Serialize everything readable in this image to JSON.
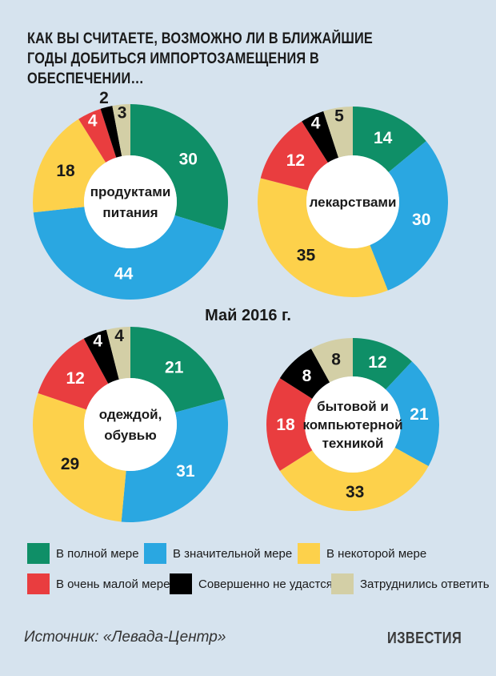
{
  "title": "КАК ВЫ СЧИТАЕТЕ, ВОЗМОЖНО ЛИ В БЛИЖАЙШИЕ ГОДЫ ДОБИТЬСЯ ИМПОРТОЗАМЕЩЕНИЯ В ОБЕСПЕЧЕНИИ…",
  "date": "Май 2016 г.",
  "source": "Источник: «Левада-Центр»",
  "logo": "ИЗВЕСТИЯ",
  "colors": {
    "full": "#0f8f67",
    "significant": "#2aa7e1",
    "some": "#fdd14b",
    "very_little": "#e93d3f",
    "impossible": "#000000",
    "hard_to_say": "#d3cfa6"
  },
  "legend": [
    {
      "label": "В полной мере",
      "color": "#0f8f67"
    },
    {
      "label": "В значительной мере",
      "color": "#2aa7e1"
    },
    {
      "label": "В некоторой мере",
      "color": "#fdd14b"
    },
    {
      "label": "В очень малой мере",
      "color": "#e93d3f"
    },
    {
      "label": "Совершенно не удастся",
      "color": "#000000"
    },
    {
      "label": "Затруднились ответить",
      "color": "#d3cfa6"
    }
  ],
  "chart_data": [
    {
      "type": "pie",
      "center_label": [
        "продуктами",
        "питания"
      ],
      "categories": [
        "В полной мере",
        "В значительной мере",
        "В некоторой мере",
        "В очень малой мере",
        "Совершенно не удастся",
        "Затруднились ответить"
      ],
      "values": [
        30,
        44,
        18,
        4,
        2,
        3
      ]
    },
    {
      "type": "pie",
      "center_label": [
        "лекарствами"
      ],
      "categories": [
        "В полной мере",
        "В значительной мере",
        "В некоторой мере",
        "В очень малой мере",
        "Совершенно не удастся",
        "Затруднились ответить"
      ],
      "values": [
        14,
        30,
        35,
        12,
        4,
        5
      ]
    },
    {
      "type": "pie",
      "center_label": [
        "одеждой,",
        "обувью"
      ],
      "categories": [
        "В полной мере",
        "В значительной мере",
        "В некоторой мере",
        "В очень малой мере",
        "Совершенно не удастся",
        "Затруднились ответить"
      ],
      "values": [
        21,
        31,
        29,
        12,
        4,
        4
      ]
    },
    {
      "type": "pie",
      "center_label": [
        "бытовой и",
        "компьютерной",
        "техникой"
      ],
      "categories": [
        "В полной мере",
        "В значительной мере",
        "В некоторой мере",
        "В очень малой мере",
        "Совершенно не удастся",
        "Затруднились ответить"
      ],
      "values": [
        12,
        21,
        33,
        18,
        8,
        8
      ]
    }
  ]
}
